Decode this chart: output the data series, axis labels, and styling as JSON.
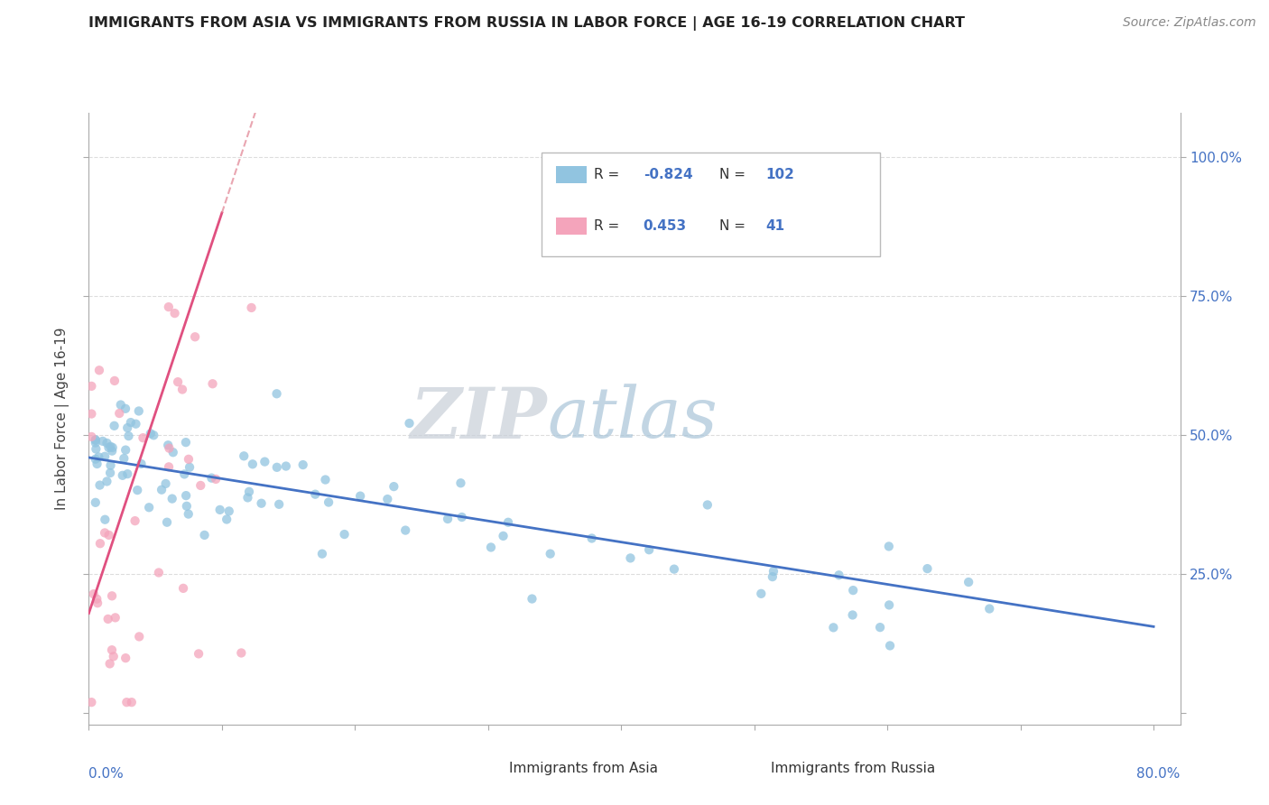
{
  "title": "IMMIGRANTS FROM ASIA VS IMMIGRANTS FROM RUSSIA IN LABOR FORCE | AGE 16-19 CORRELATION CHART",
  "source": "Source: ZipAtlas.com",
  "ylabel": "In Labor Force | Age 16-19",
  "xlim": [
    0.0,
    0.82
  ],
  "ylim": [
    -0.02,
    1.08
  ],
  "legend_R_blue": "-0.824",
  "legend_N_blue": "102",
  "legend_R_pink": "0.453",
  "legend_N_pink": "41",
  "watermark_zip": "ZIP",
  "watermark_atlas": "atlas",
  "blue_color": "#91c4e0",
  "pink_color": "#f4a4bb",
  "blue_line_color": "#4472c4",
  "pink_line_color": "#e05080",
  "pink_dash_color": "#e08090",
  "title_color": "#222222",
  "source_color": "#888888",
  "label_color": "#4472c4",
  "grid_color": "#dddddd",
  "right_tick_color": "#4472c4"
}
